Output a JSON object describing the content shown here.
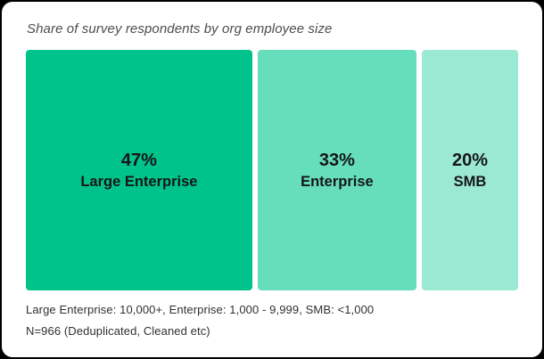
{
  "chart_data": {
    "type": "bar",
    "variant": "proportional-horizontal-segments",
    "title": "Share of survey respondents by org employee size",
    "categories": [
      "Large Enterprise",
      "Enterprise",
      "SMB"
    ],
    "values": [
      47,
      33,
      20
    ],
    "value_labels": [
      "47%",
      "33%",
      "20%"
    ],
    "segment_colors": [
      "#00c38c",
      "#66debc",
      "#9be9d3"
    ],
    "label_color": "#161616",
    "title_color": "#4d4d4d",
    "grid": false,
    "legend_position": "none",
    "footnotes": [
      "Large Enterprise: 10,000+, Enterprise: 1,000 - 9,999, SMB: <1,000",
      "N=966 (Deduplicated, Cleaned etc)"
    ]
  }
}
